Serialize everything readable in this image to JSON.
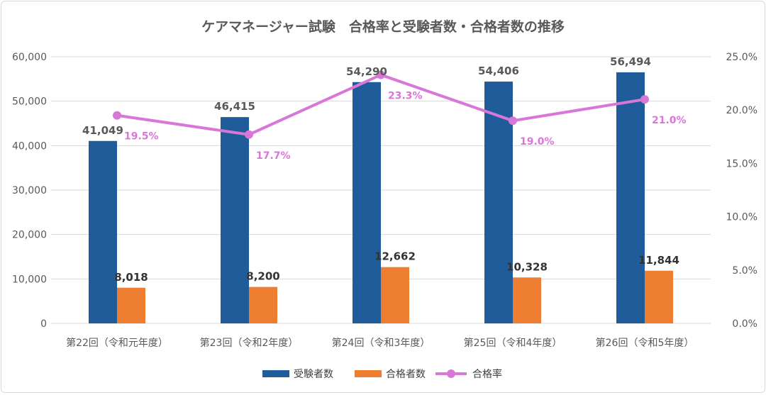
{
  "chart_data": {
    "type": "bar",
    "title": "ケアマネージャー試験　合格率と受験者数・合格者数の推移",
    "categories": [
      "第22回（令和元年度）",
      "第23回（令和2年度）",
      "第24回（令和3年度）",
      "第25回（令和4年度）",
      "第26回（令和5年度）"
    ],
    "series": [
      {
        "name": "受験者数",
        "type": "bar",
        "axis": "left",
        "color": "#1f5c99",
        "values": [
          41049,
          46415,
          54290,
          54406,
          56494
        ],
        "labels": [
          "41,049",
          "46,415",
          "54,290",
          "54,406",
          "56,494"
        ]
      },
      {
        "name": "合格者数",
        "type": "bar",
        "axis": "left",
        "color": "#ed7d31",
        "values": [
          8018,
          8200,
          12662,
          10328,
          11844
        ],
        "labels": [
          "8,018",
          "8,200",
          "12,662",
          "10,328",
          "11,844"
        ]
      },
      {
        "name": "合格率",
        "type": "line",
        "axis": "right",
        "color": "#d977d9",
        "values": [
          19.5,
          17.7,
          23.3,
          19.0,
          21.0
        ],
        "labels": [
          "19.5%",
          "17.7%",
          "23.3%",
          "19.0%",
          "21.0%"
        ]
      }
    ],
    "y_left": {
      "min": 0,
      "max": 60000,
      "ticks": [
        "0",
        "10,000",
        "20,000",
        "30,000",
        "40,000",
        "50,000",
        "60,000"
      ]
    },
    "y_right": {
      "min": 0,
      "max": 25,
      "ticks": [
        "0.0%",
        "5.0%",
        "10.0%",
        "15.0%",
        "20.0%",
        "25.0%"
      ]
    },
    "grid": true,
    "legend": {
      "position": "bottom",
      "items": [
        "受験者数",
        "合格者数",
        "合格率"
      ]
    }
  }
}
